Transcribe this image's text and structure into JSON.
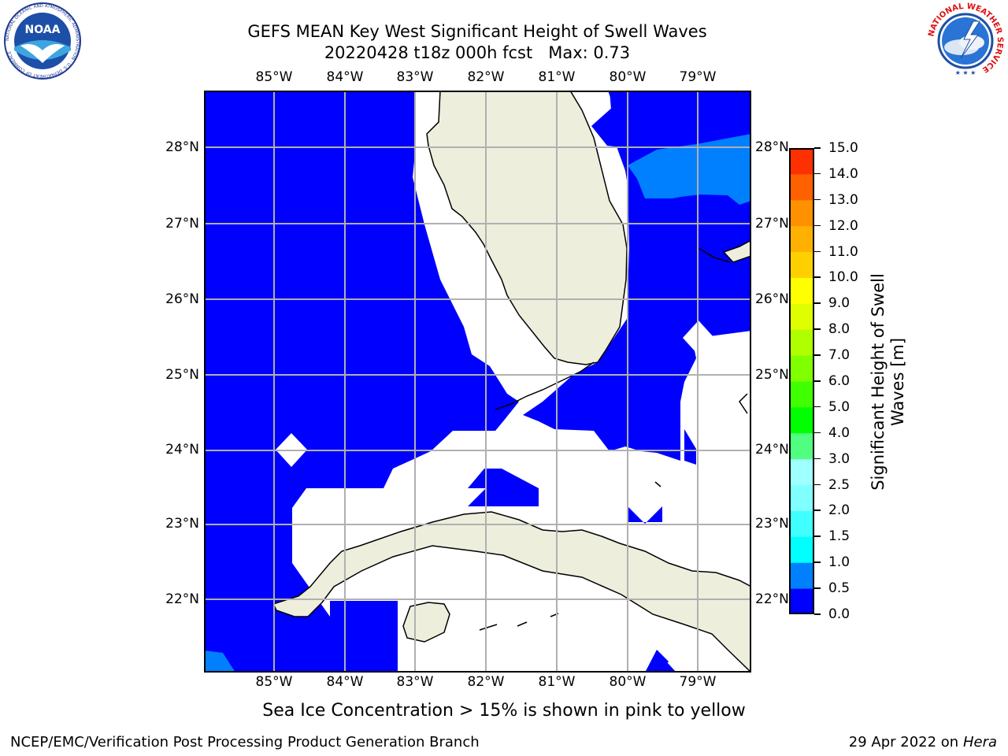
{
  "header": {
    "title_line1": "GEFS MEAN Key West Significant Height of Swell Waves",
    "title_line2": "20220428 t18z 000h fcst   Max: 0.73"
  },
  "logos": {
    "noaa_text": "NOAA",
    "noaa_ring_text": "NATIONAL OCEANIC AND ATMOSPHERIC ADMINISTRATION · U.S. DEPARTMENT OF COMMERCE",
    "nws_ring_text": "NATIONAL WEATHER SERVICE"
  },
  "map": {
    "lon_labels": [
      "85°W",
      "84°W",
      "83°W",
      "82°W",
      "81°W",
      "80°W",
      "79°W"
    ],
    "lat_labels": [
      "28°N",
      "27°N",
      "26°N",
      "25°N",
      "24°N",
      "23°N",
      "22°N"
    ],
    "extent": {
      "lon": [
        -86.0,
        -78.3
      ],
      "lat": [
        21.0,
        28.8
      ]
    },
    "gridlines": true,
    "colors": {
      "land": "#eeeedd",
      "water_0_0_5": "#0000ff",
      "water_0_5_1_0": "#0080ff",
      "missing": "#ffffff",
      "grid": "#b0b0b0"
    }
  },
  "colorbar": {
    "title": "Significant Height of Swell\nWaves [m]",
    "levels": [
      "0.0",
      "0.5",
      "1.0",
      "1.5",
      "2.0",
      "2.5",
      "3.0",
      "4.0",
      "5.0",
      "6.0",
      "7.0",
      "8.0",
      "9.0",
      "10.0",
      "11.0",
      "12.0",
      "13.0",
      "14.0",
      "15.0"
    ],
    "colors": [
      "#0000ff",
      "#0080ff",
      "#00ffff",
      "#40ffff",
      "#80ffff",
      "#a0ffff",
      "#50ff80",
      "#00ff00",
      "#40ff00",
      "#80ff00",
      "#b0ff00",
      "#dfff00",
      "#ffff00",
      "#ffd000",
      "#ffb000",
      "#ff9000",
      "#ff6000",
      "#ff3000",
      "#ff0000"
    ]
  },
  "caption": "Sea Ice Concentration > 15% is shown in pink to yellow",
  "footer": {
    "left": "NCEP/EMC/Verification Post Processing Product Generation Branch",
    "right_prefix": "29 Apr 2022 on ",
    "right_host": "Hera"
  }
}
